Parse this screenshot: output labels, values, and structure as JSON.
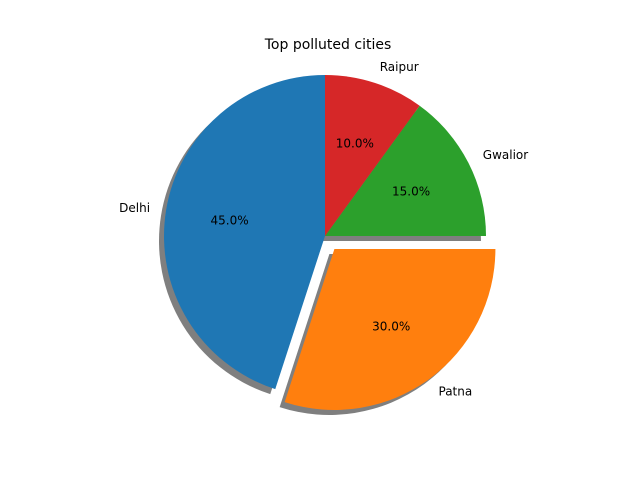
{
  "chart_data": {
    "type": "pie",
    "title": "Top polluted cities",
    "slices": [
      {
        "label": "Delhi",
        "value": 45.0,
        "pct_label": "45.0%",
        "color": "#1f77b4",
        "explode": false
      },
      {
        "label": "Patna",
        "value": 30.0,
        "pct_label": "30.0%",
        "color": "#ff7f0e",
        "explode": true
      },
      {
        "label": "Gwalior",
        "value": 15.0,
        "pct_label": "15.0%",
        "color": "#2ca02c",
        "explode": false
      },
      {
        "label": "Raipur",
        "value": 10.0,
        "pct_label": "10.0%",
        "color": "#d62728",
        "explode": false
      }
    ],
    "start_angle_deg": 90,
    "direction": "counterclockwise",
    "shadow": true,
    "shadow_color": "#7f7f7f"
  }
}
